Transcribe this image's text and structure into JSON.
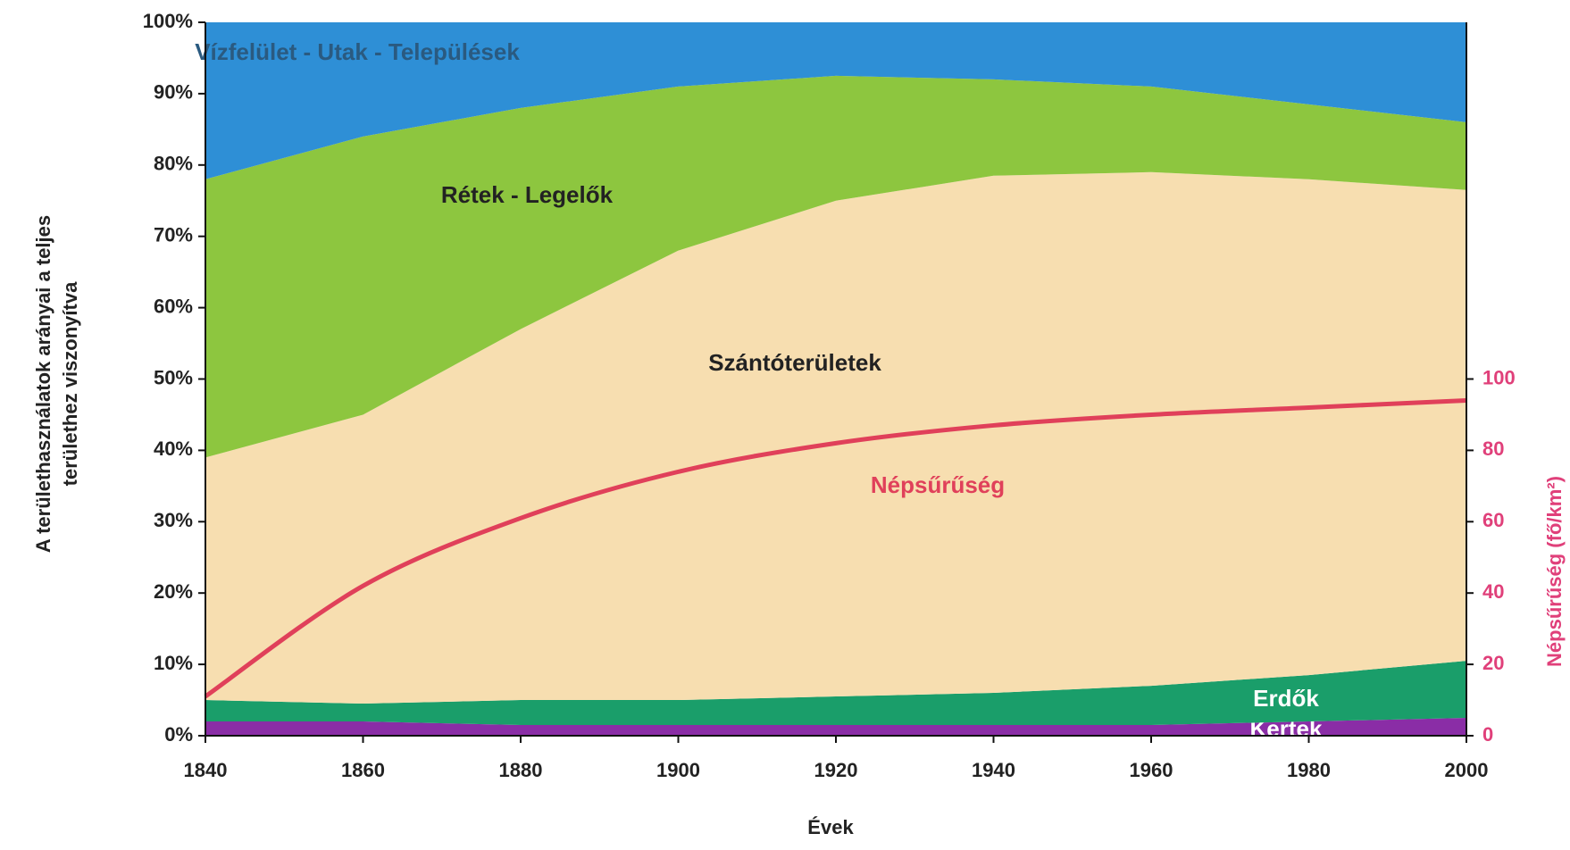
{
  "chart_data": {
    "type": "area",
    "stacked": true,
    "x": [
      1840,
      1860,
      1880,
      1900,
      1920,
      1940,
      1960,
      1980,
      2000
    ],
    "series": [
      {
        "name": "Kertek",
        "color": "#8a2da6",
        "values": [
          2,
          2,
          1.5,
          1.5,
          1.5,
          1.5,
          1.5,
          2,
          2.5
        ]
      },
      {
        "name": "Erdők",
        "color": "#1a9e6a",
        "values": [
          3,
          2.5,
          3.5,
          3.5,
          4,
          4.5,
          5.5,
          6.5,
          8
        ]
      },
      {
        "name": "Szántóterületek",
        "color": "#f7deb0",
        "values": [
          34,
          40.5,
          52,
          63,
          69.5,
          72.5,
          72,
          69.5,
          66
        ]
      },
      {
        "name": "Rétek - Legelők",
        "color": "#8dc63f",
        "values": [
          39,
          39,
          31,
          23,
          17.5,
          13.5,
          12,
          10.5,
          9.5
        ]
      },
      {
        "name": "Vízfelület - Utak - Települések",
        "color": "#2e8fd6",
        "values": [
          22,
          16,
          12,
          9,
          7.5,
          8,
          9,
          11.5,
          14
        ]
      },
      {
        "name": "Népsűrűség",
        "type": "line",
        "axis": "y2",
        "color": "#e0405a",
        "values": [
          11,
          42,
          61,
          74,
          82,
          87,
          90,
          92,
          94
        ]
      }
    ],
    "xlabel": "Évek",
    "ylabel": [
      "A területhasználatok arányai a teljes",
      "területhez viszonyítva"
    ],
    "y2label": "Népsűrűség (fő/km²)",
    "xlim": [
      1840,
      2000
    ],
    "xticks": [
      1840,
      1860,
      1880,
      1900,
      1920,
      1940,
      1960,
      1980,
      2000
    ],
    "ylim": [
      0,
      100
    ],
    "yticks": [
      {
        "value": 0,
        "label": "0%"
      },
      {
        "value": 10,
        "label": "10%"
      },
      {
        "value": 20,
        "label": "20%"
      },
      {
        "value": 30,
        "label": "30%"
      },
      {
        "value": 40,
        "label": "40%"
      },
      {
        "value": 50,
        "label": "50%"
      },
      {
        "value": 60,
        "label": "60%"
      },
      {
        "value": 70,
        "label": "70%"
      },
      {
        "value": 80,
        "label": "80%"
      },
      {
        "value": 90,
        "label": "90%"
      },
      {
        "value": 100,
        "label": "100%"
      }
    ],
    "y2lim": [
      0,
      200
    ],
    "y2ticks": [
      0,
      20,
      40,
      60,
      80,
      100
    ],
    "grid": false
  }
}
